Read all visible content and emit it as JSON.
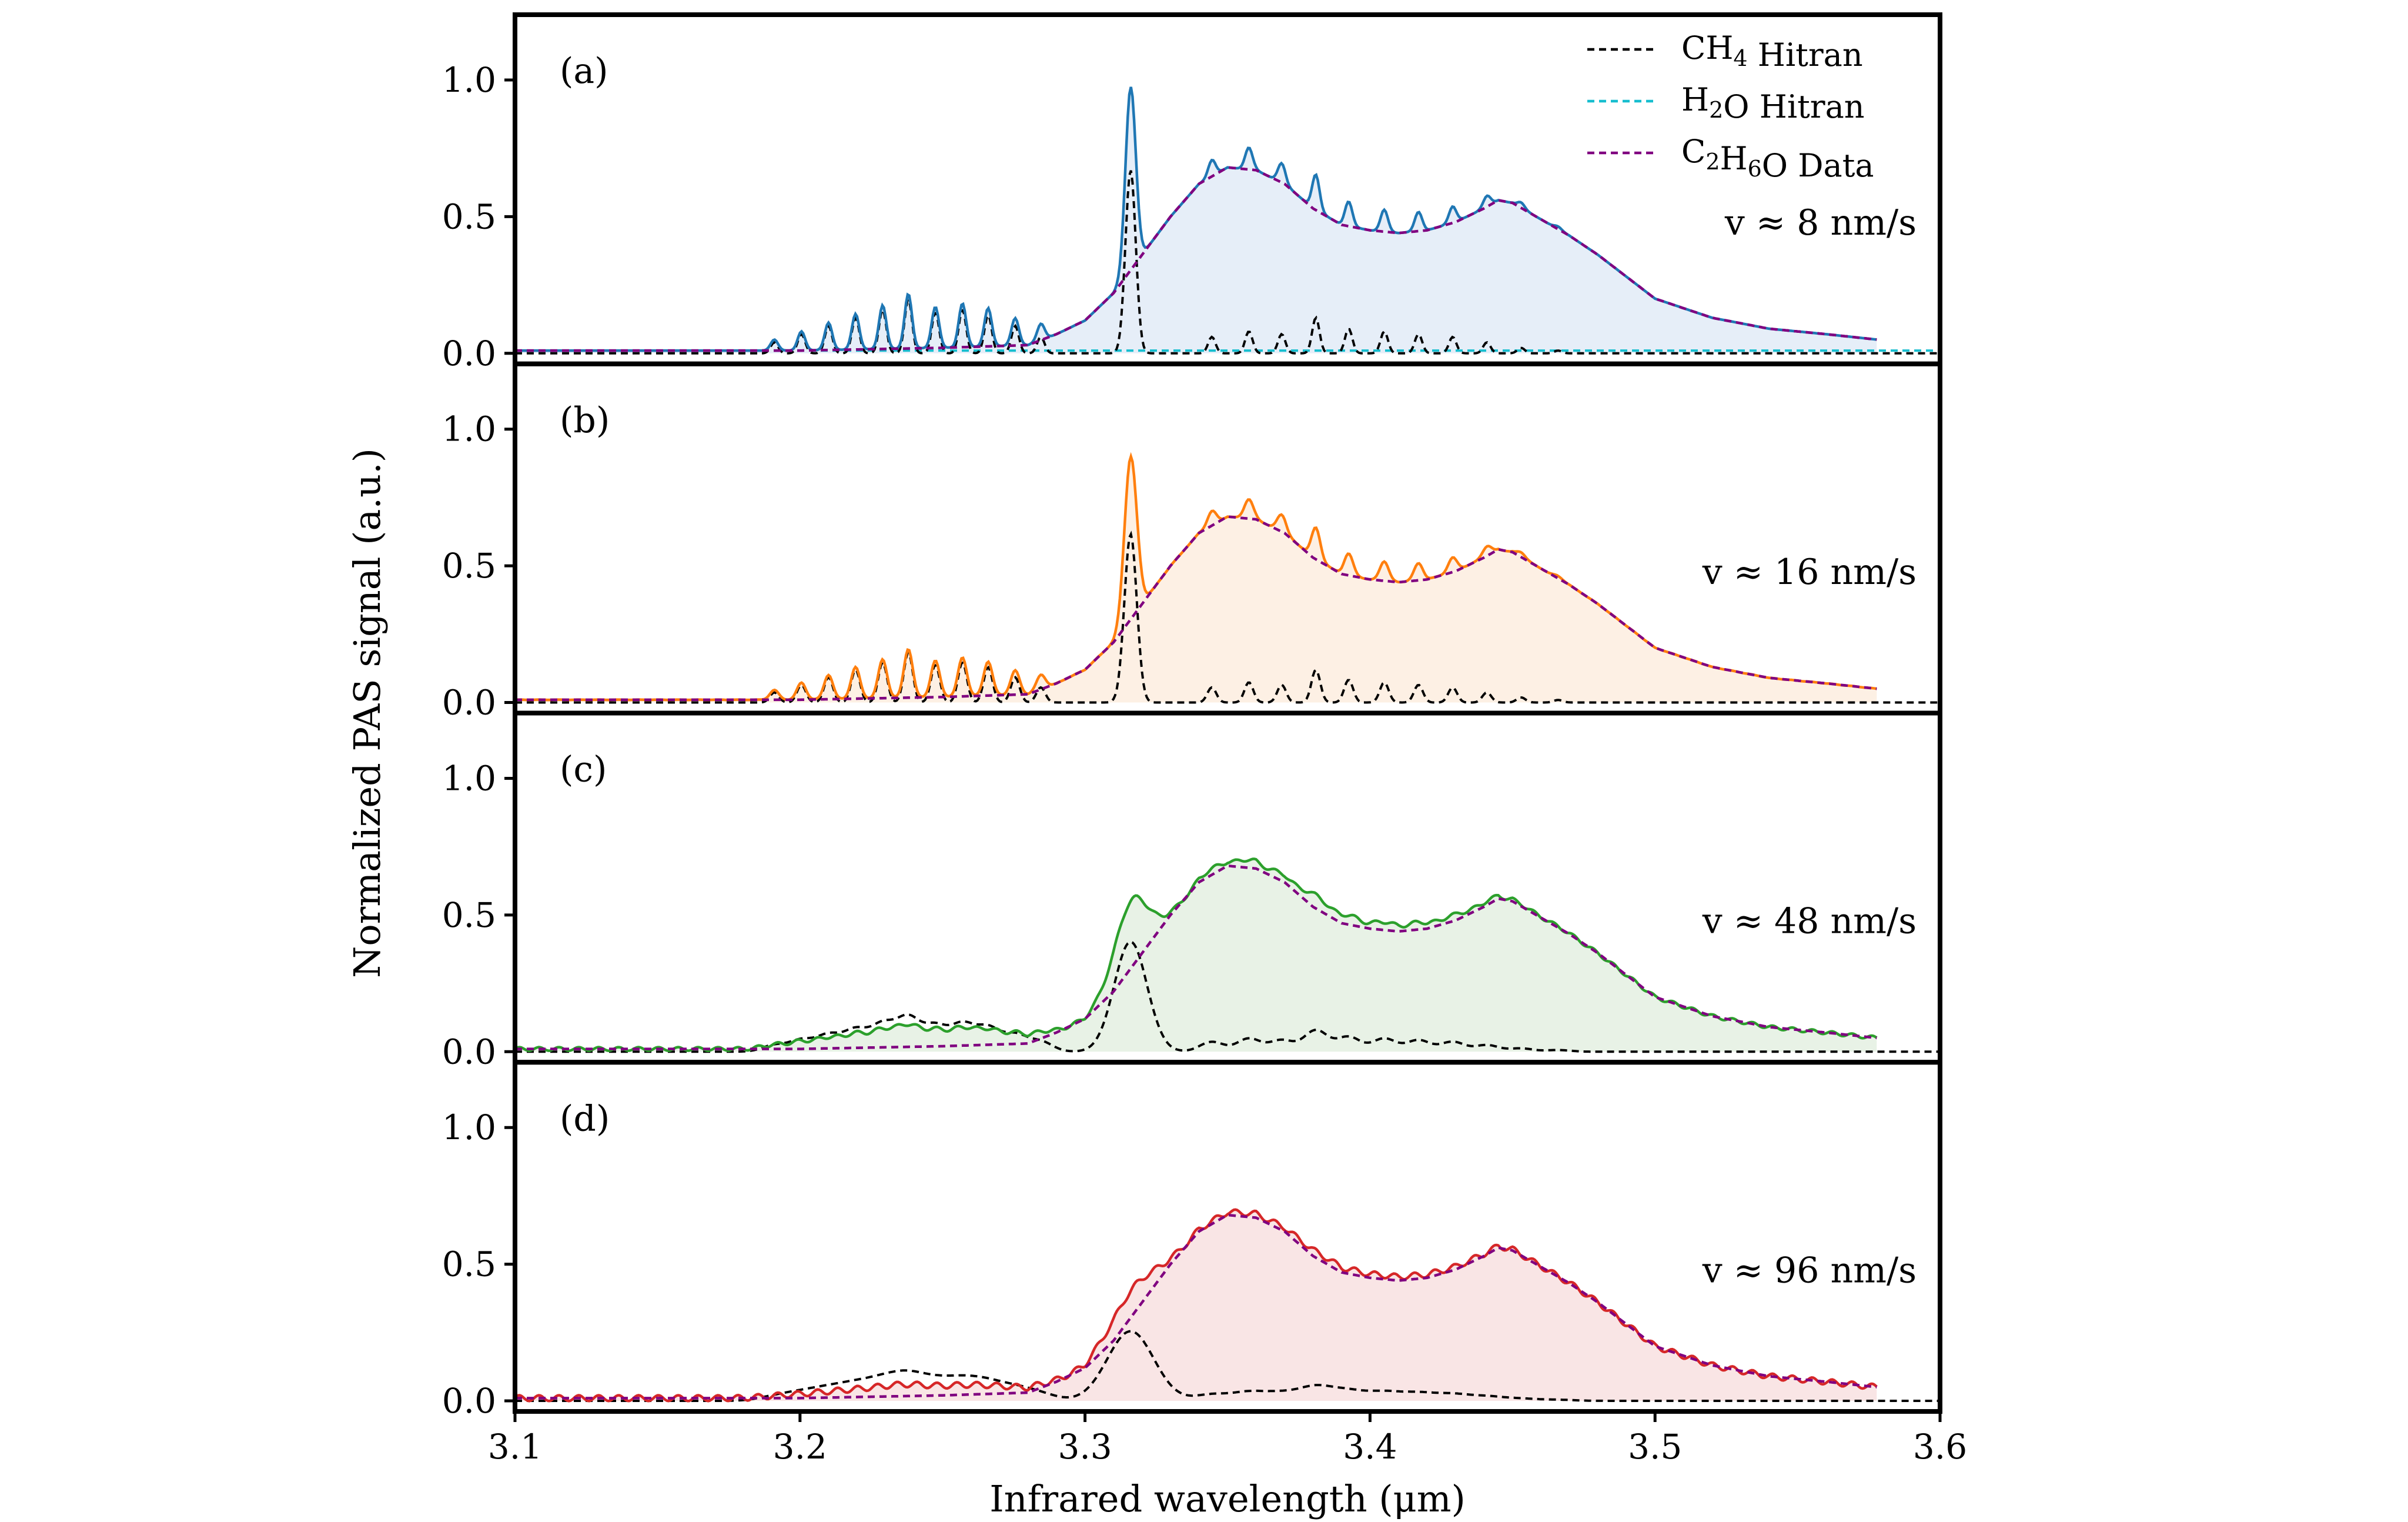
{
  "chart_data": {
    "type": "line",
    "xlabel": "Infrared wavelength (μm)",
    "ylabel": "Normalized PAS signal (a.u.)",
    "xlim": [
      3.1,
      3.6
    ],
    "ylim": [
      0.0,
      1.2
    ],
    "xticks": [
      "3.1",
      "3.2",
      "3.3",
      "3.4",
      "3.5",
      "3.6"
    ],
    "yticks": [
      "0.0",
      "0.5",
      "1.0"
    ],
    "legend": {
      "placement": "top-right of panel (a)",
      "entries": [
        {
          "species": "CH",
          "sub": "4",
          "post": "",
          "tail": " Hitran",
          "color": "#000000",
          "style": "dashed"
        },
        {
          "species": "H",
          "sub": "2",
          "post": "O",
          "tail": " Hitran",
          "color": "#17becf",
          "style": "dashed"
        },
        {
          "species": "C",
          "sub": "2",
          "post": "H",
          "sub2": "6",
          "post2": "O",
          "tail": " Data",
          "color": "#800080",
          "style": "dashed"
        }
      ]
    },
    "panels": [
      {
        "label": "(a)",
        "speed": "v ≈ 8 nm/s",
        "color": "#1f77b4",
        "fill": "#e6eef8",
        "ch4_scale": 1.0,
        "sharpness": 1.0,
        "show_h2o": true
      },
      {
        "label": "(b)",
        "speed": "v ≈ 16 nm/s",
        "color": "#ff7f0e",
        "fill": "#fdf0e4",
        "ch4_scale": 0.92,
        "sharpness": 0.95,
        "show_h2o": false
      },
      {
        "label": "(c)",
        "speed": "v ≈ 48 nm/s",
        "color": "#2ca02c",
        "fill": "#e8f2e6",
        "ch4_scale": 0.6,
        "sharpness": 0.45,
        "show_h2o": false
      },
      {
        "label": "(d)",
        "speed": "v ≈ 96 nm/s",
        "color": "#d62728",
        "fill": "#f9e5e5",
        "ch4_scale": 0.38,
        "sharpness": 0.12,
        "show_h2o": false
      }
    ],
    "c2h6o_profile": {
      "x": [
        3.1,
        3.2,
        3.25,
        3.28,
        3.29,
        3.3,
        3.31,
        3.32,
        3.33,
        3.34,
        3.35,
        3.36,
        3.37,
        3.38,
        3.39,
        3.4,
        3.41,
        3.42,
        3.43,
        3.44,
        3.445,
        3.45,
        3.46,
        3.47,
        3.48,
        3.49,
        3.5,
        3.52,
        3.54,
        3.56,
        3.578
      ],
      "y": [
        0.01,
        0.01,
        0.02,
        0.03,
        0.07,
        0.12,
        0.22,
        0.36,
        0.5,
        0.62,
        0.68,
        0.67,
        0.62,
        0.53,
        0.47,
        0.45,
        0.44,
        0.45,
        0.48,
        0.53,
        0.56,
        0.55,
        0.49,
        0.43,
        0.36,
        0.28,
        0.2,
        0.13,
        0.09,
        0.07,
        0.05
      ]
    },
    "ch4_peaks": {
      "x": [
        3.191,
        3.2005,
        3.21,
        3.2195,
        3.229,
        3.238,
        3.2475,
        3.257,
        3.266,
        3.2755,
        3.2845,
        3.316,
        3.3445,
        3.3575,
        3.369,
        3.381,
        3.3925,
        3.405,
        3.417,
        3.429,
        3.441,
        3.453,
        3.466
      ],
      "y": [
        0.04,
        0.07,
        0.1,
        0.13,
        0.16,
        0.2,
        0.15,
        0.16,
        0.14,
        0.1,
        0.06,
        0.67,
        0.06,
        0.08,
        0.07,
        0.13,
        0.09,
        0.08,
        0.07,
        0.06,
        0.04,
        0.02,
        0.01
      ]
    },
    "h2o_baseline": 0.01
  }
}
